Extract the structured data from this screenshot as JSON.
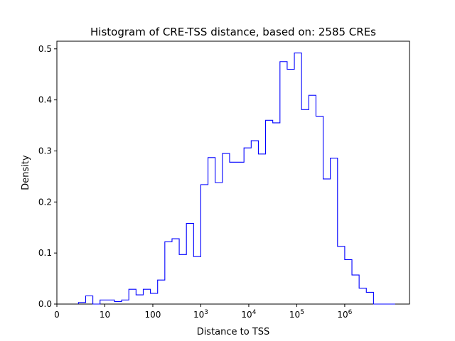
{
  "chart_data": {
    "type": "histogram",
    "title": "Histogram of CRE-TSS distance, based on: 2585 CREs",
    "xlabel": "Distance to TSS",
    "ylabel": "Density",
    "x_scale": "log10 (bins in log10 distance)",
    "xlim": [
      0,
      7.35
    ],
    "ylim": [
      0,
      0.515
    ],
    "grid": false,
    "series_color": "#0000ff",
    "x_ticks": [
      {
        "value": 0,
        "label": "0"
      },
      {
        "value": 1,
        "label": "10"
      },
      {
        "value": 2,
        "label": "100"
      },
      {
        "value": 3,
        "label": "10^3",
        "base": "10",
        "exp": "3"
      },
      {
        "value": 4,
        "label": "10^4",
        "base": "10",
        "exp": "4"
      },
      {
        "value": 5,
        "label": "10^5",
        "base": "10",
        "exp": "5"
      },
      {
        "value": 6,
        "label": "10^6",
        "base": "10",
        "exp": "6"
      }
    ],
    "y_ticks": [
      {
        "value": 0.0,
        "label": "0.0"
      },
      {
        "value": 0.1,
        "label": "0.1"
      },
      {
        "value": 0.2,
        "label": "0.2"
      },
      {
        "value": 0.3,
        "label": "0.3"
      },
      {
        "value": 0.4,
        "label": "0.4"
      },
      {
        "value": 0.5,
        "label": "0.5"
      }
    ],
    "bin_edges": [
      0.45,
      0.6,
      0.75,
      0.9,
      1.05,
      1.2,
      1.35,
      1.5,
      1.65,
      1.8,
      1.95,
      2.1,
      2.25,
      2.4,
      2.55,
      2.7,
      2.85,
      3.0,
      3.15,
      3.3,
      3.45,
      3.6,
      3.75,
      3.9,
      4.05,
      4.2,
      4.35,
      4.5,
      4.65,
      4.8,
      4.95,
      5.1,
      5.25,
      5.4,
      5.55,
      5.7,
      5.85,
      6.0,
      6.15,
      6.3,
      6.45,
      6.6,
      6.75,
      6.9,
      7.05
    ],
    "densities": [
      0.003,
      0.016,
      0.0,
      0.008,
      0.008,
      0.005,
      0.008,
      0.029,
      0.018,
      0.029,
      0.021,
      0.047,
      0.122,
      0.128,
      0.097,
      0.158,
      0.093,
      0.234,
      0.287,
      0.238,
      0.295,
      0.278,
      0.278,
      0.306,
      0.32,
      0.294,
      0.36,
      0.355,
      0.475,
      0.46,
      0.492,
      0.381,
      0.409,
      0.368,
      0.245,
      0.286,
      0.113,
      0.087,
      0.057,
      0.031,
      0.023,
      0.0,
      0.0,
      0.0
    ]
  }
}
